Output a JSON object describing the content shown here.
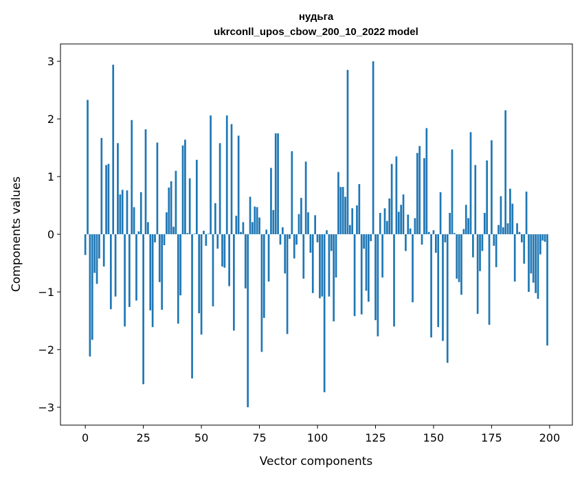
{
  "chart_data": {
    "type": "bar",
    "title_line1": "нудьга",
    "title_line2": "ukrconll_upos_cbow_200_10_2022 model",
    "xlabel": "Vector components",
    "ylabel": "Components values",
    "xlim": [
      -10.7,
      209.8
    ],
    "ylim": [
      -3.31,
      3.3
    ],
    "xticks": [
      0,
      25,
      50,
      75,
      100,
      125,
      150,
      175,
      200
    ],
    "yticks": [
      -3,
      -2,
      -1,
      0,
      1,
      2,
      3
    ],
    "ytick_labels": [
      "−3",
      "−2",
      "−1",
      "0",
      "1",
      "2",
      "3"
    ],
    "grid": false,
    "bar_color": "#1f77b4",
    "values": [
      -0.36,
      2.33,
      -2.12,
      -1.83,
      -0.67,
      -0.86,
      -0.42,
      1.67,
      -0.56,
      1.2,
      1.22,
      -1.3,
      2.94,
      -1.08,
      1.58,
      0.69,
      0.77,
      -1.6,
      0.76,
      -1.26,
      1.98,
      0.47,
      -1.15,
      0.05,
      0.73,
      -2.6,
      1.82,
      0.21,
      -1.32,
      -1.61,
      -0.14,
      1.59,
      -0.83,
      -1.31,
      -0.19,
      0.38,
      0.81,
      0.92,
      0.13,
      1.1,
      -1.55,
      -1.06,
      1.54,
      1.64,
      0.02,
      0.97,
      -2.5,
      0.01,
      1.29,
      -1.37,
      -1.74,
      0.06,
      -0.2,
      0.01,
      2.06,
      -1.25,
      0.54,
      -0.25,
      1.58,
      -0.56,
      -0.58,
      2.06,
      -0.9,
      1.91,
      -1.67,
      0.32,
      1.71,
      0.04,
      0.21,
      -0.94,
      -3.0,
      0.65,
      0.21,
      0.48,
      0.47,
      0.29,
      -2.04,
      -1.45,
      0.08,
      -0.82,
      1.15,
      0.42,
      1.75,
      1.75,
      -0.18,
      0.12,
      -0.68,
      -1.73,
      -0.08,
      1.44,
      -0.42,
      -0.18,
      0.35,
      0.63,
      -0.77,
      1.26,
      0.38,
      -0.32,
      -1.02,
      0.33,
      -0.14,
      -1.11,
      -1.08,
      -2.74,
      0.07,
      -1.08,
      -0.29,
      -1.51,
      -0.75,
      1.08,
      0.82,
      0.82,
      0.65,
      2.85,
      0.16,
      0.45,
      -1.42,
      0.5,
      0.87,
      -1.39,
      -0.25,
      -0.98,
      -1.17,
      -0.12,
      3.0,
      -1.49,
      -1.77,
      0.37,
      -0.75,
      0.45,
      0.23,
      0.62,
      1.22,
      -1.6,
      1.35,
      0.39,
      0.51,
      0.69,
      -0.29,
      0.34,
      0.1,
      -1.18,
      0.28,
      1.41,
      1.53,
      -0.18,
      1.32,
      1.84,
      0.04,
      -1.79,
      0.07,
      -0.32,
      -1.61,
      0.73,
      -1.85,
      -0.14,
      -2.23,
      0.37,
      1.47,
      0.02,
      -0.77,
      -0.83,
      -1.05,
      0.09,
      0.51,
      0.28,
      1.77,
      -0.4,
      1.2,
      -1.38,
      -0.64,
      -0.29,
      0.37,
      1.28,
      -1.57,
      1.63,
      -0.2,
      -0.57,
      0.16,
      0.66,
      0.12,
      2.15,
      0.19,
      0.79,
      0.53,
      -0.82,
      0.19,
      0.04,
      -0.14,
      -0.51,
      0.74,
      -1.0,
      -0.68,
      -0.84,
      -1.02,
      -1.12,
      -0.35,
      -0.11,
      -0.13,
      -1.93
    ]
  }
}
